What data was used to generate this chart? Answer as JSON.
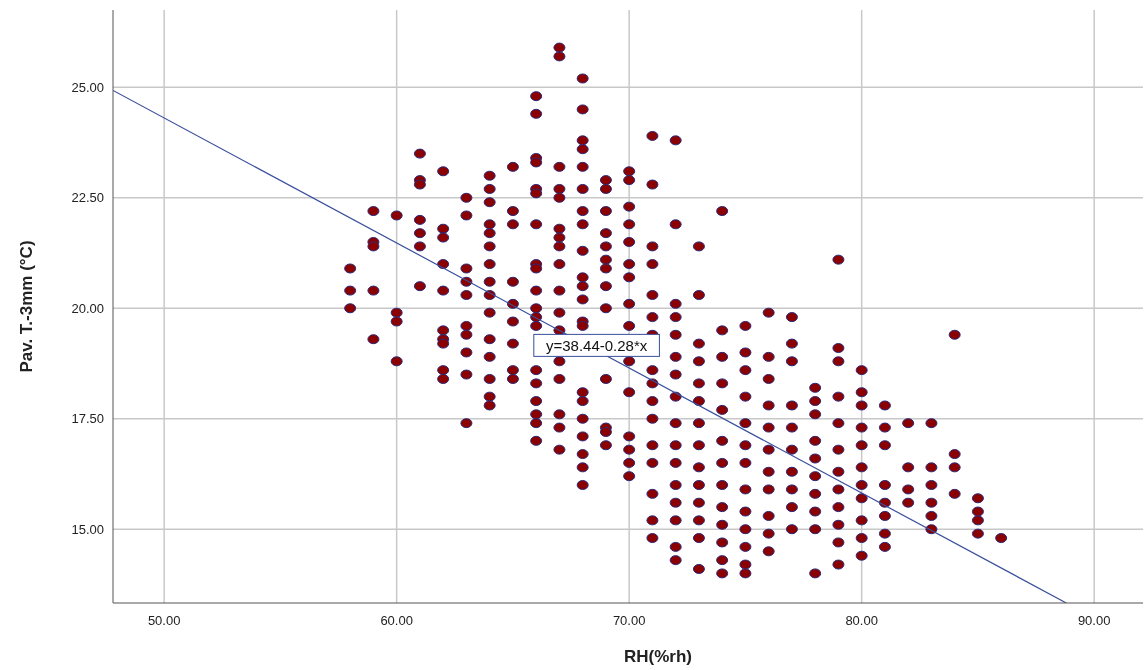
{
  "chart_data": {
    "type": "scatter",
    "xlabel": "RH(%rh)",
    "ylabel": "Pav. T.-3mm (°C)",
    "xlim": [
      47.8,
      92.1
    ],
    "ylim": [
      13.33,
      26.75
    ],
    "xticks": [
      {
        "value": 50,
        "label": "50.00"
      },
      {
        "value": 60,
        "label": "60.00"
      },
      {
        "value": 70,
        "label": "70.00"
      },
      {
        "value": 80,
        "label": "80.00"
      },
      {
        "value": 90,
        "label": "90.00"
      }
    ],
    "yticks": [
      {
        "value": 15,
        "label": "15.00"
      },
      {
        "value": 17.5,
        "label": "17.50"
      },
      {
        "value": 20,
        "label": "20.00"
      },
      {
        "value": 22.5,
        "label": "22.50"
      },
      {
        "value": 25,
        "label": "25.00"
      }
    ],
    "grid": true,
    "marker": "circle",
    "annotations": [
      {
        "text": "y=38.44-0.28*x",
        "x": 68.6,
        "y": 19.16
      }
    ],
    "series": [
      {
        "color": "#8b0000",
        "x": [
          58,
          58,
          58,
          59,
          59,
          59,
          59,
          59,
          60,
          60,
          60,
          60,
          61,
          61,
          61,
          61,
          61,
          61,
          61,
          62,
          62,
          62,
          62,
          62,
          62,
          62,
          62,
          62,
          62,
          63,
          63,
          63,
          63,
          63,
          63,
          63,
          63,
          63,
          63,
          64,
          64,
          64,
          64,
          64,
          64,
          64,
          64,
          64,
          64,
          64,
          64,
          64,
          64,
          64,
          65,
          65,
          65,
          65,
          65,
          65,
          65,
          65,
          65,
          66,
          66,
          66,
          66,
          66,
          66,
          66,
          66,
          66,
          66,
          66,
          66,
          66,
          66,
          66,
          66,
          66,
          66,
          66,
          67,
          67,
          67,
          67,
          67,
          67,
          67,
          67,
          67,
          67,
          67,
          67,
          67,
          67,
          67,
          67,
          67,
          68,
          68,
          68,
          68,
          68,
          68,
          68,
          68,
          68,
          68,
          68,
          68,
          68,
          68,
          68,
          68,
          68,
          68,
          68,
          68,
          68,
          69,
          69,
          69,
          69,
          69,
          69,
          69,
          69,
          69,
          69,
          69,
          69,
          69,
          70,
          70,
          70,
          70,
          70,
          70,
          70,
          70,
          70,
          70,
          70,
          70,
          70,
          70,
          70,
          71,
          71,
          71,
          71,
          71,
          71,
          71,
          71,
          71,
          71,
          71,
          71,
          71,
          71,
          71,
          71,
          72,
          72,
          72,
          72,
          72,
          72,
          72,
          72,
          72,
          72,
          72,
          72,
          72,
          72,
          72,
          72,
          73,
          73,
          73,
          73,
          73,
          73,
          73,
          73,
          73,
          73,
          73,
          73,
          73,
          73,
          74,
          74,
          74,
          74,
          74,
          74,
          74,
          74,
          74,
          74,
          74,
          74,
          74,
          75,
          75,
          75,
          75,
          75,
          75,
          75,
          75,
          75,
          75,
          75,
          75,
          75,
          76,
          76,
          76,
          76,
          76,
          76,
          76,
          76,
          76,
          76,
          76,
          77,
          77,
          77,
          77,
          77,
          77,
          77,
          77,
          77,
          77,
          78,
          78,
          78,
          78,
          78,
          78,
          78,
          78,
          78,
          78,
          79,
          79,
          79,
          79,
          79,
          79,
          79,
          79,
          79,
          79,
          79,
          79,
          80,
          80,
          80,
          80,
          80,
          80,
          80,
          80,
          80,
          80,
          80,
          81,
          81,
          81,
          81,
          81,
          81,
          81,
          81,
          82,
          82,
          82,
          82,
          83,
          83,
          83,
          83,
          83,
          83,
          84,
          84,
          84,
          84,
          85,
          85,
          85,
          85,
          86
        ],
        "values": [
          20.9,
          20.4,
          20.0,
          22.2,
          21.5,
          21.4,
          20.4,
          19.3,
          22.1,
          19.9,
          19.7,
          18.8,
          23.5,
          22.9,
          22.8,
          22.0,
          21.7,
          21.4,
          20.5,
          23.1,
          21.8,
          21.6,
          21.0,
          20.4,
          19.5,
          19.3,
          19.2,
          18.6,
          18.4,
          22.5,
          22.1,
          20.9,
          20.6,
          20.3,
          19.6,
          19.4,
          19.0,
          18.5,
          17.4,
          23.0,
          22.7,
          22.4,
          21.9,
          21.7,
          21.4,
          21.0,
          20.6,
          20.3,
          19.9,
          19.3,
          18.9,
          18.4,
          18.0,
          17.8,
          23.2,
          22.2,
          21.9,
          20.6,
          20.1,
          19.7,
          19.2,
          18.6,
          18.4,
          24.8,
          24.4,
          23.4,
          23.3,
          22.7,
          22.6,
          21.9,
          21.0,
          20.9,
          20.4,
          20.0,
          19.8,
          19.6,
          18.6,
          18.3,
          17.9,
          17.6,
          17.4,
          17.0,
          25.9,
          25.7,
          23.2,
          22.7,
          22.5,
          21.8,
          21.6,
          21.4,
          21.0,
          20.4,
          19.9,
          19.5,
          18.8,
          18.4,
          17.6,
          17.3,
          16.8,
          25.2,
          24.5,
          23.8,
          23.6,
          23.2,
          22.7,
          22.2,
          21.9,
          21.3,
          20.7,
          20.5,
          20.2,
          19.7,
          19.6,
          18.1,
          17.9,
          17.5,
          17.1,
          16.7,
          16.4,
          16.0,
          22.9,
          22.7,
          22.2,
          21.7,
          21.4,
          21.1,
          20.9,
          20.5,
          20.0,
          18.4,
          17.3,
          17.2,
          16.9,
          23.1,
          22.9,
          22.3,
          21.9,
          21.5,
          21.0,
          20.7,
          20.1,
          19.6,
          18.8,
          18.1,
          17.1,
          16.8,
          16.5,
          16.2,
          23.9,
          22.8,
          21.4,
          21.0,
          20.3,
          19.8,
          19.4,
          18.6,
          18.3,
          17.9,
          17.5,
          16.9,
          16.5,
          15.8,
          15.2,
          14.8,
          23.8,
          21.9,
          20.1,
          19.8,
          19.4,
          18.9,
          18.5,
          18.0,
          17.4,
          16.9,
          16.5,
          16.0,
          15.6,
          15.2,
          14.6,
          14.3,
          21.4,
          20.3,
          19.2,
          18.8,
          18.3,
          17.9,
          17.4,
          16.9,
          16.4,
          16.0,
          15.6,
          15.2,
          14.8,
          14.1,
          22.2,
          19.5,
          18.9,
          18.3,
          17.7,
          17.0,
          16.5,
          16.0,
          15.5,
          15.1,
          14.7,
          14.3,
          14.0,
          19.6,
          19.0,
          18.6,
          18.0,
          17.4,
          16.9,
          16.5,
          15.9,
          15.4,
          15.0,
          14.6,
          14.2,
          14.0,
          19.9,
          18.9,
          18.4,
          17.8,
          17.3,
          16.8,
          16.3,
          15.9,
          15.3,
          14.9,
          14.5,
          19.8,
          19.2,
          18.8,
          17.8,
          17.3,
          16.8,
          16.3,
          15.9,
          15.5,
          15.0,
          18.2,
          17.9,
          17.6,
          17.0,
          16.6,
          16.2,
          15.8,
          15.4,
          15.0,
          14.0,
          21.1,
          19.1,
          18.8,
          18.0,
          17.4,
          16.8,
          16.3,
          15.9,
          15.5,
          15.1,
          14.7,
          14.2,
          18.6,
          18.1,
          17.8,
          17.3,
          16.9,
          16.4,
          16.0,
          15.7,
          15.2,
          14.8,
          14.4,
          17.8,
          17.3,
          16.9,
          16.0,
          15.6,
          15.3,
          14.9,
          14.6,
          17.4,
          16.4,
          15.9,
          15.6,
          17.4,
          16.4,
          16.0,
          15.6,
          15.3,
          15.0,
          19.4,
          16.7,
          16.4,
          15.8,
          15.7,
          15.4,
          15.2,
          14.9,
          14.8
        ]
      },
      {
        "type": "line",
        "marker": "none",
        "color": "#3a4f9c",
        "x": [
          47.8,
          88.8
        ],
        "values": [
          24.93,
          13.33
        ]
      }
    ]
  }
}
